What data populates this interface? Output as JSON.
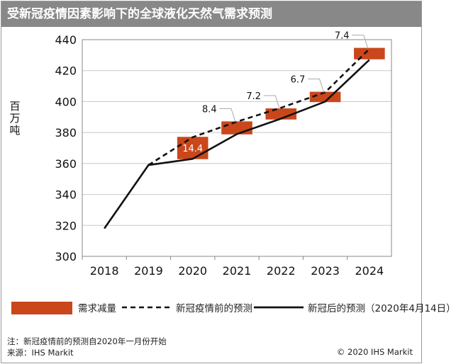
{
  "title": "受新冠疫情因素影响下的全球液化天然气需求预测",
  "footer": {
    "note": "注：新冠疫情前的预测自2020年一月份开始",
    "source": "来源：IHS Markit",
    "copyright": "© 2020 IHS Markit"
  },
  "legend": {
    "reduction": "需求减量",
    "pre_covid": "新冠疫情前的预测",
    "post_covid": "新冠后的预测（2020年4月14日）"
  },
  "colors": {
    "bar": "#c9471b",
    "line": "#111111",
    "grid": "#c8c8c8",
    "title_bg": "#888888"
  },
  "chart_data": {
    "type": "line",
    "title": "受新冠疫情因素影响下的全球液化天然气需求预测",
    "ylabel": "百万吨",
    "xlabel": "",
    "ylim": [
      300,
      440
    ],
    "yticks": [
      300,
      320,
      340,
      360,
      380,
      400,
      420,
      440
    ],
    "categories": [
      "2018",
      "2019",
      "2020",
      "2021",
      "2022",
      "2023",
      "2024"
    ],
    "grid": true,
    "legend_position": "bottom",
    "series": [
      {
        "name": "新冠疫情前的预测",
        "style": "dashed",
        "x": [
          "2019",
          "2020",
          "2021",
          "2022",
          "2023",
          "2024"
        ],
        "values": [
          359,
          377,
          387,
          396,
          406,
          434
        ]
      },
      {
        "name": "新冠后的预测（2020年4月14日）",
        "style": "solid",
        "x": [
          "2018",
          "2019",
          "2020",
          "2021",
          "2022",
          "2023",
          "2024"
        ],
        "values": [
          318,
          359,
          363,
          379,
          389,
          400,
          427
        ]
      }
    ],
    "reduction": {
      "name": "需求减量",
      "x": [
        "2020",
        "2021",
        "2022",
        "2023",
        "2024"
      ],
      "values": [
        "14.4",
        "8.4",
        "7.2",
        "6.7",
        "7.4"
      ],
      "box_center": [
        370,
        383,
        392,
        403,
        431
      ]
    }
  }
}
